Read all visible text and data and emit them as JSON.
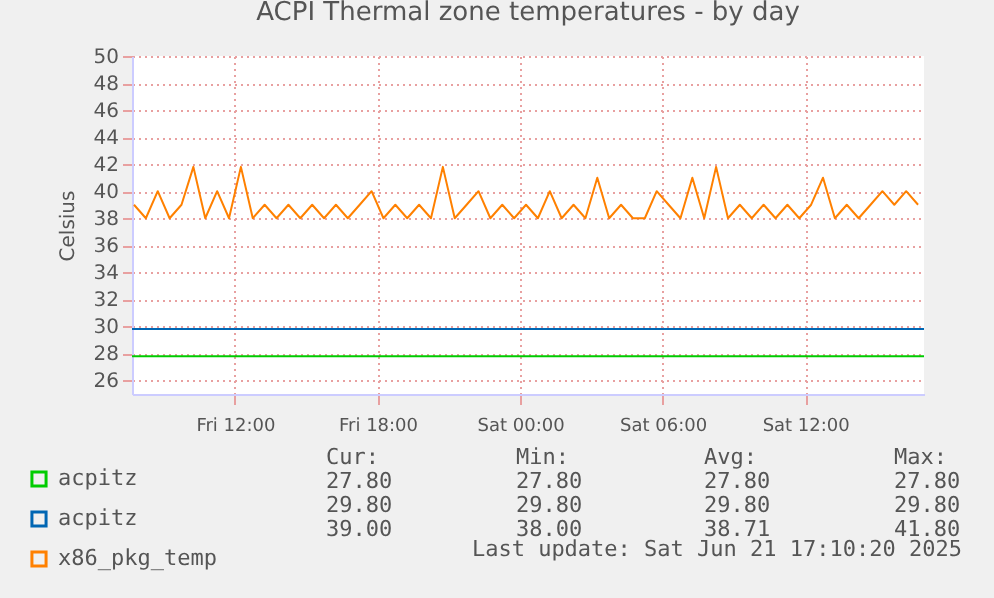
{
  "chart_data": {
    "type": "line",
    "title": "ACPI Thermal zone temperatures - by day",
    "ylabel": "Celsius",
    "xlim": [
      "2025-06-20T07:40",
      "2025-06-21T17:00"
    ],
    "xticks": [
      {
        "value": "2025-06-20T12:00",
        "label": "Fri 12:00"
      },
      {
        "value": "2025-06-20T18:00",
        "label": "Fri 18:00"
      },
      {
        "value": "2025-06-21T00:00",
        "label": "Sat 00:00"
      },
      {
        "value": "2025-06-21T06:00",
        "label": "Sat 06:00"
      },
      {
        "value": "2025-06-21T12:00",
        "label": "Sat 12:00"
      }
    ],
    "ylim": [
      25,
      50
    ],
    "yticks": [
      26,
      28,
      30,
      32,
      34,
      36,
      38,
      40,
      42,
      44,
      46,
      48,
      50
    ],
    "grid": true,
    "legend": "bottom",
    "marker": "none",
    "line_style": "solid",
    "series": [
      {
        "name": "acpitz",
        "color": "#00cc00",
        "x": [
          "2025-06-20T07:40",
          "2025-06-21T17:00"
        ],
        "values": [
          27.8,
          27.8
        ]
      },
      {
        "name": "acpitz",
        "color": "#0066b3",
        "x": [
          "2025-06-20T07:40",
          "2025-06-21T17:00"
        ],
        "values": [
          29.8,
          29.8
        ]
      },
      {
        "name": "x86_pkg_temp",
        "color": "#ff8000",
        "x": [
          "2025-06-20T07:45",
          "2025-06-20T08:15",
          "2025-06-20T08:45",
          "2025-06-20T09:15",
          "2025-06-20T09:45",
          "2025-06-20T10:15",
          "2025-06-20T10:45",
          "2025-06-20T11:15",
          "2025-06-20T11:45",
          "2025-06-20T12:15",
          "2025-06-20T12:45",
          "2025-06-20T13:15",
          "2025-06-20T13:45",
          "2025-06-20T14:15",
          "2025-06-20T14:45",
          "2025-06-20T15:15",
          "2025-06-20T15:45",
          "2025-06-20T16:15",
          "2025-06-20T16:45",
          "2025-06-20T17:15",
          "2025-06-20T17:45",
          "2025-06-20T18:15",
          "2025-06-20T18:45",
          "2025-06-20T19:15",
          "2025-06-20T19:45",
          "2025-06-20T20:15",
          "2025-06-20T20:45",
          "2025-06-20T21:15",
          "2025-06-20T21:45",
          "2025-06-20T22:15",
          "2025-06-20T22:45",
          "2025-06-20T23:15",
          "2025-06-20T23:45",
          "2025-06-21T00:15",
          "2025-06-21T00:45",
          "2025-06-21T01:15",
          "2025-06-21T01:45",
          "2025-06-21T02:15",
          "2025-06-21T02:45",
          "2025-06-21T03:15",
          "2025-06-21T03:45",
          "2025-06-21T04:15",
          "2025-06-21T04:45",
          "2025-06-21T05:15",
          "2025-06-21T05:45",
          "2025-06-21T06:15",
          "2025-06-21T06:45",
          "2025-06-21T07:15",
          "2025-06-21T07:45",
          "2025-06-21T08:15",
          "2025-06-21T08:45",
          "2025-06-21T09:15",
          "2025-06-21T09:45",
          "2025-06-21T10:15",
          "2025-06-21T10:45",
          "2025-06-21T11:15",
          "2025-06-21T11:45",
          "2025-06-21T12:15",
          "2025-06-21T12:45",
          "2025-06-21T13:15",
          "2025-06-21T13:45",
          "2025-06-21T14:15",
          "2025-06-21T14:45",
          "2025-06-21T15:15",
          "2025-06-21T15:45",
          "2025-06-21T16:15",
          "2025-06-21T16:45"
        ],
        "values": [
          39,
          38,
          40,
          38,
          39,
          41.8,
          38,
          40,
          38,
          41.8,
          38,
          39,
          38,
          39,
          38,
          39,
          38,
          39,
          38,
          39,
          40,
          38,
          39,
          38,
          39,
          38,
          41.8,
          38,
          39,
          40,
          38,
          39,
          38,
          39,
          38,
          40,
          38,
          39,
          38,
          41,
          38,
          39,
          38,
          38,
          40,
          39,
          38,
          41,
          38,
          41.8,
          38,
          39,
          38,
          39,
          38,
          39,
          38,
          39,
          41,
          38,
          39,
          38,
          39,
          40,
          39,
          40,
          39
        ]
      }
    ],
    "annotations": [
      "Cur:",
      "Min:",
      "Avg:",
      "Max:",
      "27.80",
      "27.80",
      "27.80",
      "27.80",
      "29.80",
      "29.80",
      "29.80",
      "29.80",
      "39.00",
      "38.00",
      "38.71",
      "41.80",
      "Last update: Sat Jun 21 17:10:20 2025"
    ]
  }
}
